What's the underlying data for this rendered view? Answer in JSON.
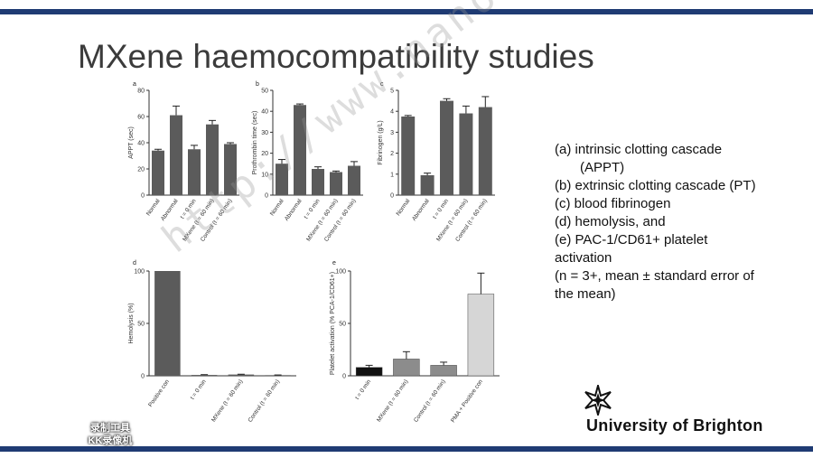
{
  "slide": {
    "title": "MXene haemocompatibility studies"
  },
  "watermark": "http://www.nanomxenes.com",
  "legend": {
    "a": "(a) intrinsic clotting cascade",
    "a2": "(APPT)",
    "b": "(b) extrinsic clotting cascade (PT)",
    "c": "(c) blood fibrinogen",
    "d": "(d) hemolysis, and",
    "e": "(e) PAC-1/CD61+ platelet",
    "e2": "activation",
    "n": "(n = 3+, mean ± standard error of",
    "n2": "the mean)"
  },
  "institution": "University of Brighton",
  "corner_brand": {
    "line1": "录制工具",
    "line2": "KK录像机"
  },
  "colors": {
    "bar": "#5b5b5b",
    "bar_black": "#111111",
    "bar_gray": "#8c8c8c",
    "bar_light": "#d6d6d6",
    "rule": "#1f3b73"
  },
  "chart_data": [
    {
      "panel": "a",
      "type": "bar",
      "ylabel": "APPT (sec)",
      "ylim": [
        0,
        80
      ],
      "yticks": [
        0,
        20,
        40,
        60,
        80
      ],
      "categories": [
        "Normal",
        "Abnormal",
        "t = 0 min",
        "MXene (t = 60 min)",
        "Control (t = 60 min)"
      ],
      "values": [
        34,
        61,
        35,
        54,
        39
      ],
      "errors": [
        1,
        7,
        3,
        3,
        1
      ]
    },
    {
      "panel": "b",
      "type": "bar",
      "ylabel": "Prothrombin time (sec)",
      "ylim": [
        0,
        50
      ],
      "yticks": [
        0,
        10,
        20,
        30,
        40,
        50
      ],
      "categories": [
        "Normal",
        "Abnormal",
        "t = 0 min",
        "MXene (t = 60 min)",
        "Control (t = 60 min)"
      ],
      "values": [
        15,
        43,
        12.5,
        11,
        14
      ],
      "errors": [
        2,
        0.5,
        1,
        0.5,
        2
      ]
    },
    {
      "panel": "c",
      "type": "bar",
      "ylabel": "Fibrinogen (g/L)",
      "ylim": [
        0,
        5
      ],
      "yticks": [
        0,
        1,
        2,
        3,
        4,
        5
      ],
      "categories": [
        "Normal",
        "Abnormal",
        "t = 0 min",
        "MXene (t = 60 min)",
        "Control (t = 60 min)"
      ],
      "values": [
        3.75,
        0.95,
        4.5,
        3.9,
        4.2
      ],
      "errors": [
        0.05,
        0.1,
        0.1,
        0.35,
        0.5
      ]
    },
    {
      "panel": "d",
      "type": "bar",
      "ylabel": "Hemolysis (%)",
      "ylim": [
        0,
        100
      ],
      "yticks": [
        0,
        50,
        100
      ],
      "categories": [
        "Positive con",
        "t = 0 min",
        "MXene (t = 60 min)",
        "Control (t = 60 min)"
      ],
      "values": [
        100,
        0.8,
        1.2,
        0.6
      ],
      "errors": [
        0,
        0.3,
        0.3,
        0.2
      ]
    },
    {
      "panel": "e",
      "type": "bar",
      "ylabel": "Platelet activation (% PCA-1/CD61+)",
      "ylim": [
        0,
        100
      ],
      "yticks": [
        0,
        50,
        100
      ],
      "categories": [
        "t = 0 min",
        "MXene (t = 60 min)",
        "Control (t = 60 min)",
        "PMA + Positive con"
      ],
      "values": [
        8,
        16,
        10,
        78
      ],
      "errors": [
        2,
        7,
        3,
        20
      ],
      "bar_colors": [
        "#111111",
        "#8c8c8c",
        "#8c8c8c",
        "#d6d6d6"
      ]
    }
  ]
}
